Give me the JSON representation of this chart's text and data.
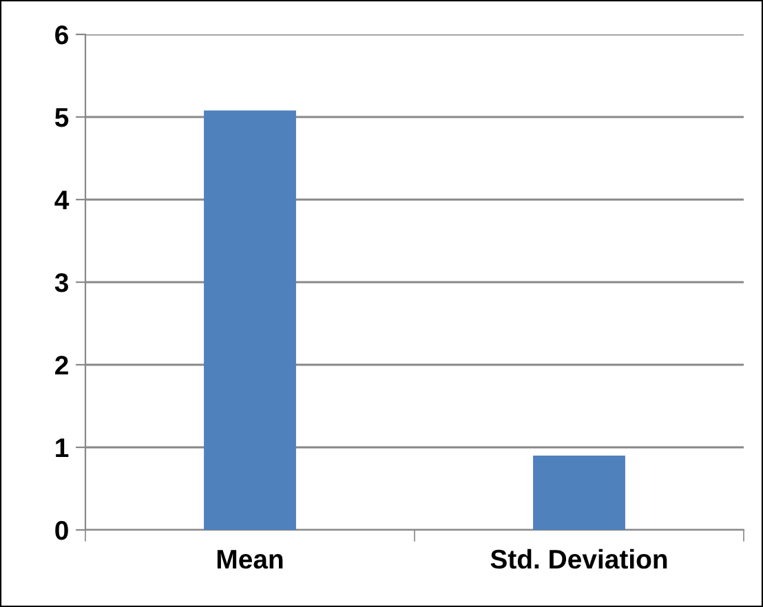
{
  "chart_data": {
    "type": "bar",
    "categories": [
      "Mean",
      "Std. Deviation"
    ],
    "values": [
      5.08,
      0.9
    ],
    "color": "#4f81bd",
    "ylim": [
      0,
      6
    ],
    "yticks": [
      0,
      1,
      2,
      3,
      4,
      5,
      6
    ],
    "grid": "y",
    "legend": false
  }
}
